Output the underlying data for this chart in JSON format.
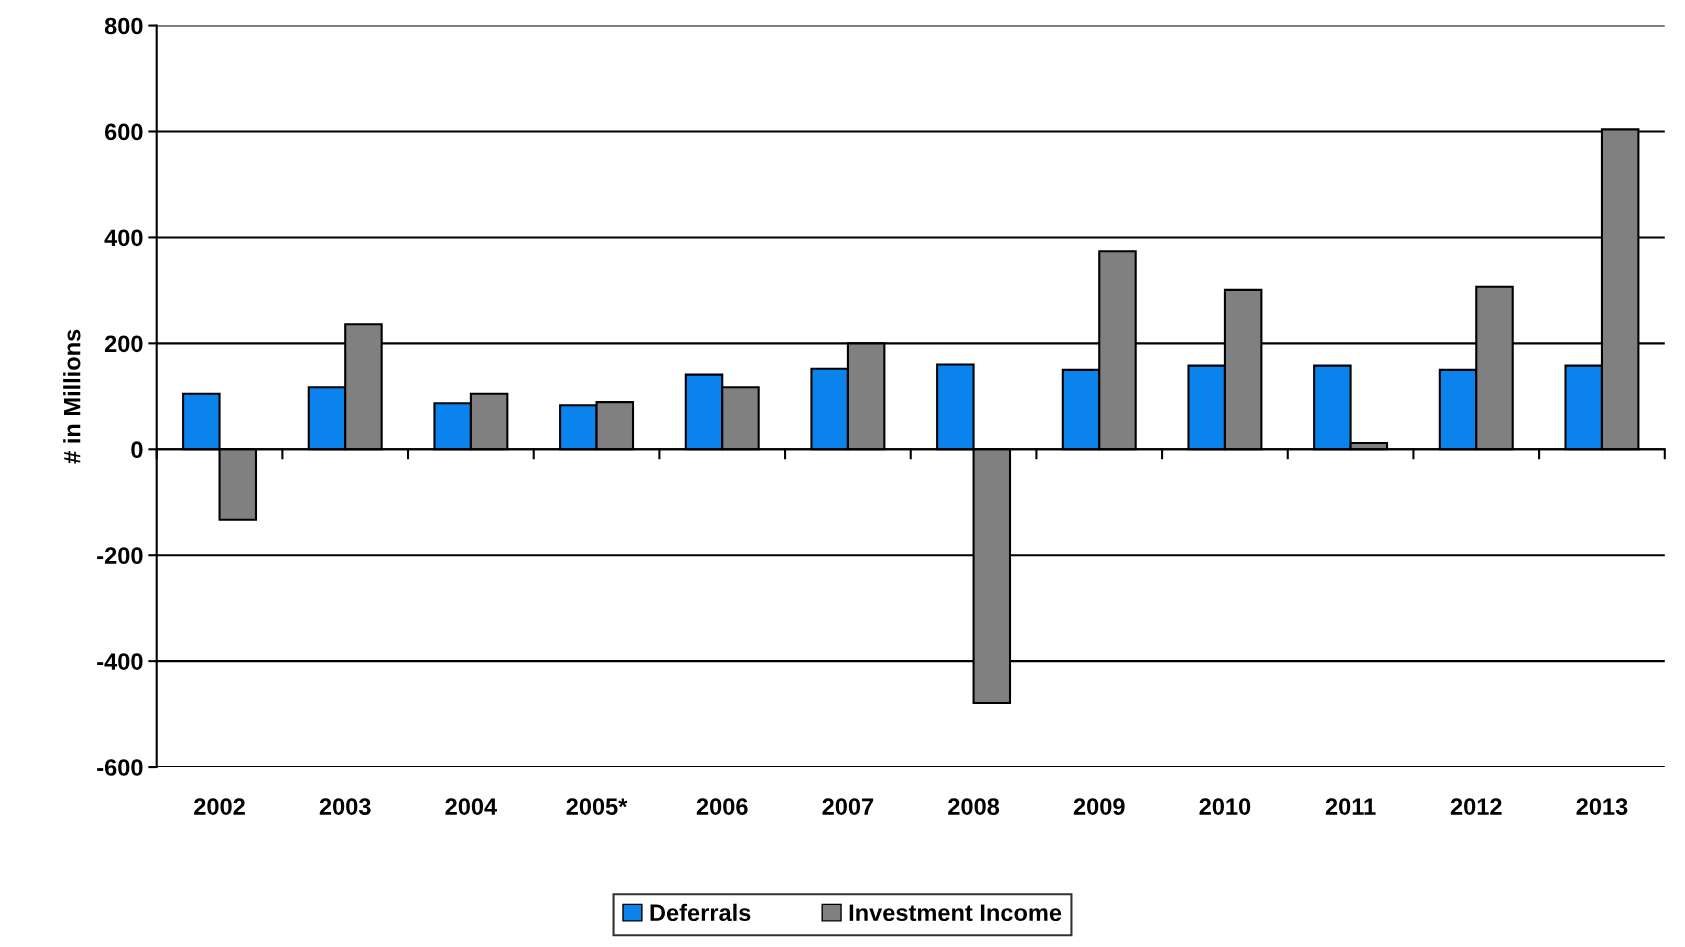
{
  "chart_data": {
    "type": "bar",
    "ylabel": "# in Millions",
    "categories": [
      "2002",
      "2003",
      "2004",
      "2005*",
      "2006",
      "2007",
      "2008",
      "2009",
      "2010",
      "2011",
      "2012",
      "2013"
    ],
    "series": [
      {
        "name": "Deferrals",
        "color": "#0a84ec",
        "values": [
          105,
          117,
          87,
          83,
          141,
          152,
          160,
          150,
          158,
          158,
          150,
          158
        ]
      },
      {
        "name": "Investment Income",
        "color": "#808080",
        "values": [
          -133,
          236,
          105,
          89,
          117,
          200,
          -479,
          374,
          301,
          12,
          307,
          604
        ]
      }
    ],
    "ylim": [
      -600,
      800
    ],
    "yticks": [
      -600,
      -400,
      -200,
      0,
      200,
      400,
      600,
      800
    ],
    "grid": "y",
    "legend": "bottom"
  }
}
